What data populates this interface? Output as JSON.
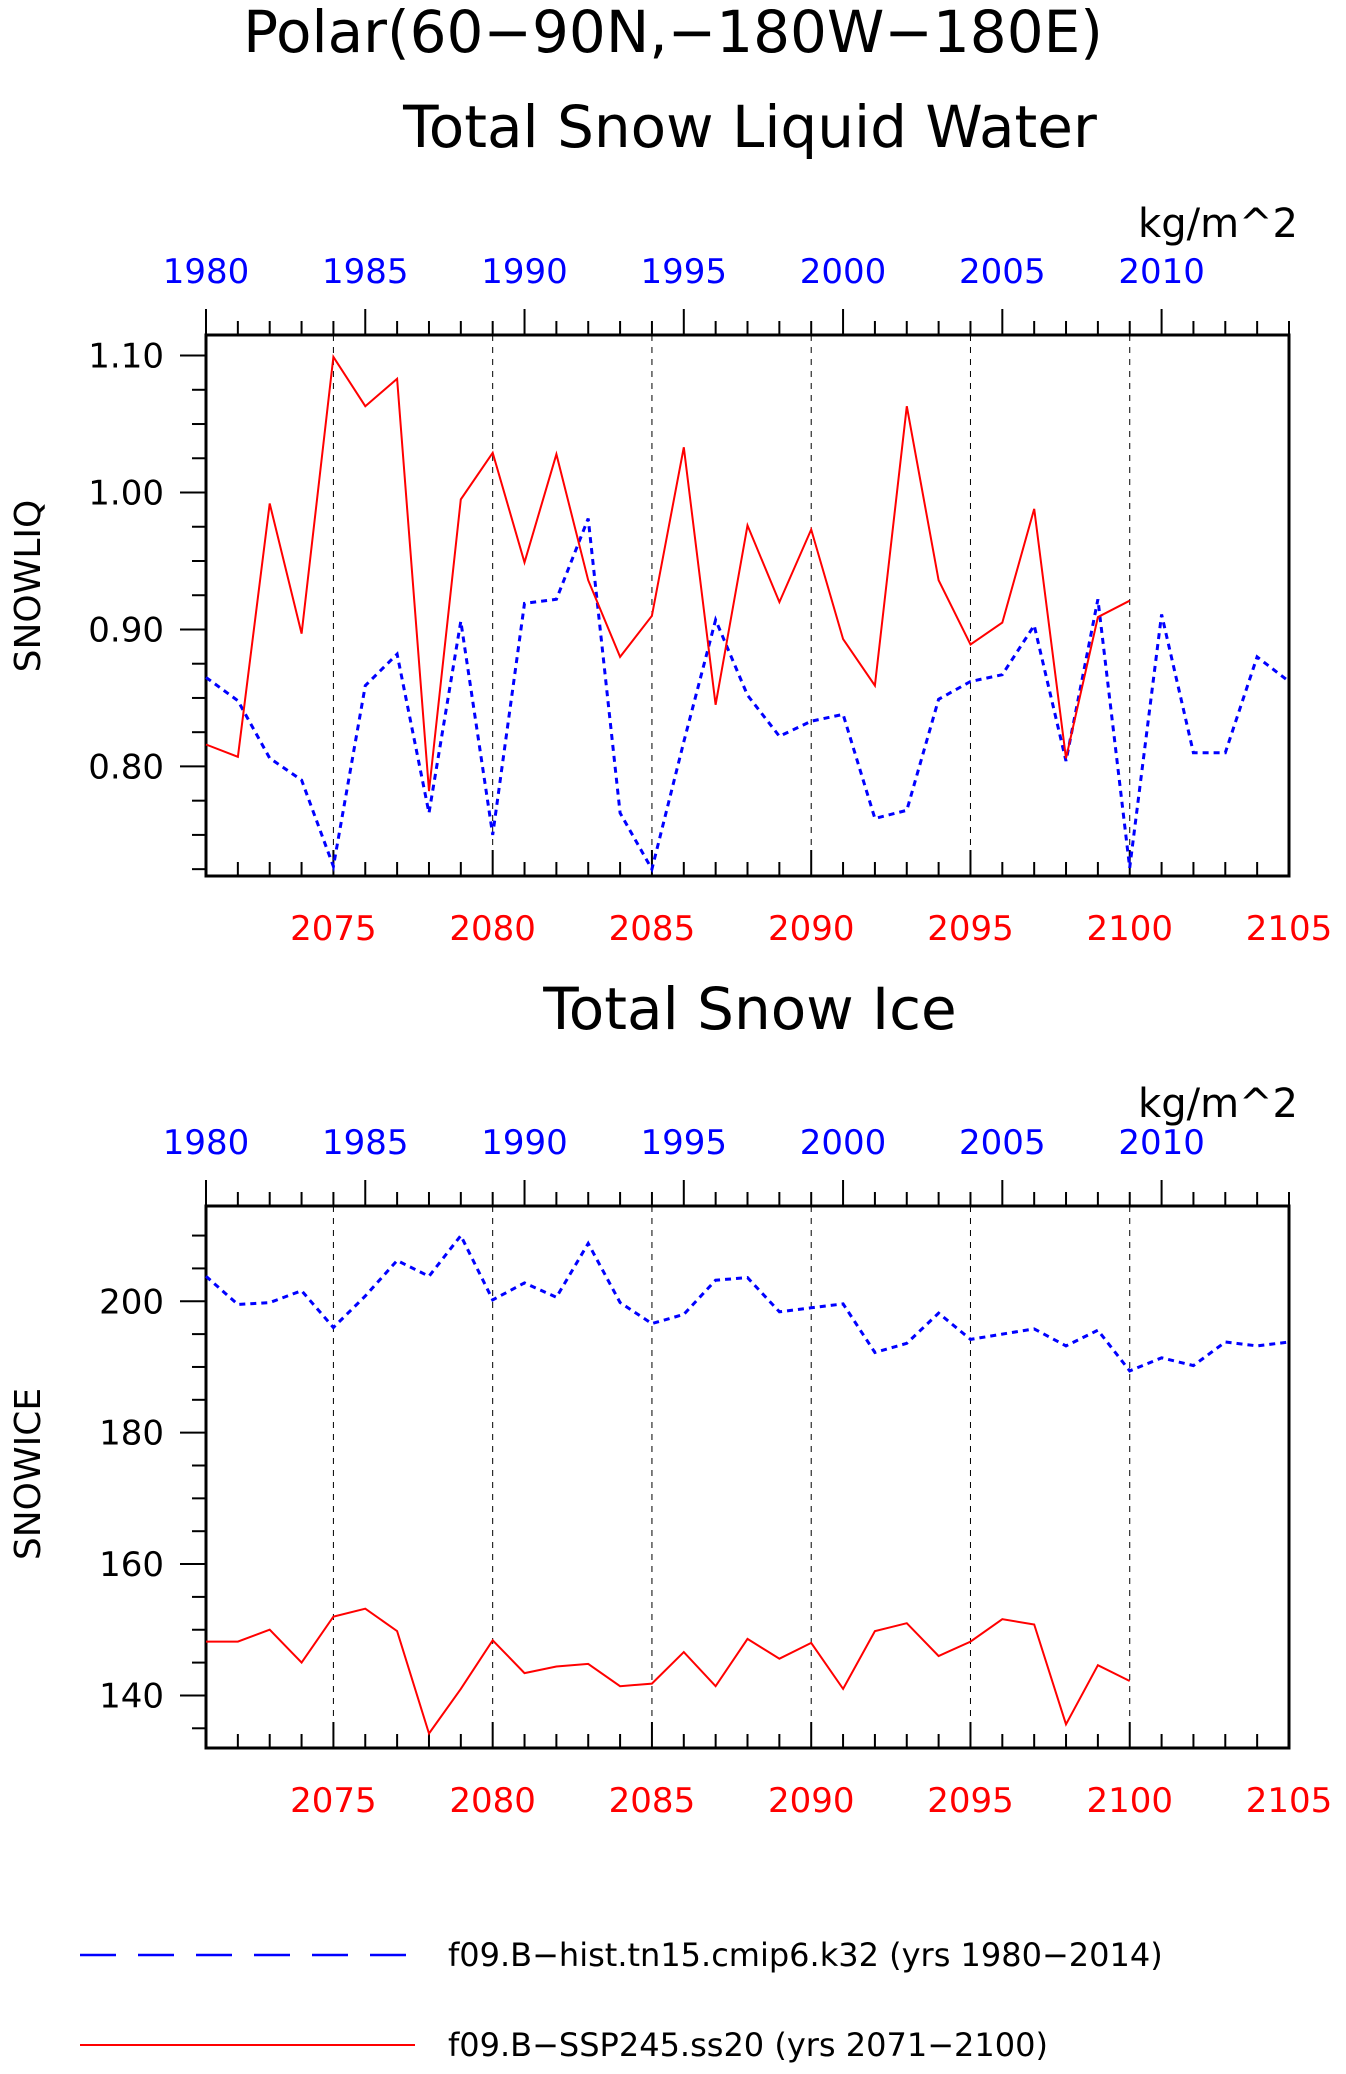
{
  "page": {
    "title": "Polar(60−90N,−180W−180E)",
    "legend": [
      {
        "label": "f09.B−hist.tn15.cmip6.k32 (yrs 1980−2014)",
        "color": "#0000ff",
        "dash": "dashed"
      },
      {
        "label": "f09.B−SSP245.ss20 (yrs 2071−2100)",
        "color": "#ff0000",
        "dash": "solid"
      }
    ]
  },
  "colors": {
    "hist": "#0000ff",
    "ssp": "#ff0000",
    "axes": "#000000"
  },
  "chart_data": [
    {
      "type": "line",
      "title": "Total Snow Liquid Water",
      "ylabel": "SNOWLIQ",
      "units": "kg/m^2",
      "ylim": [
        0.72,
        1.115
      ],
      "yticks": [
        0.8,
        0.9,
        1.0,
        1.1
      ],
      "ytick_labels": [
        "0.80",
        "0.90",
        "1.00",
        "1.10"
      ],
      "bottom_axis": {
        "range": [
          2071,
          2105
        ],
        "ticks": [
          2075,
          2080,
          2085,
          2090,
          2095,
          2100,
          2105
        ],
        "tick_labels": [
          "2075",
          "2080",
          "2085",
          "2090",
          "2095",
          "2100",
          "2105"
        ]
      },
      "top_axis": {
        "range": [
          1980,
          2014
        ],
        "ticks": [
          1980,
          1985,
          1990,
          1995,
          2000,
          2005,
          2010
        ],
        "tick_labels": [
          "1980",
          "1985",
          "1990",
          "1995",
          "2000",
          "2005",
          "2010"
        ]
      },
      "grid": "vertical dashed at labeled years",
      "series": [
        {
          "name": "f09.B−hist.tn15.cmip6.k32 (yrs 1980−2014)",
          "axis": "top",
          "x": [
            1980,
            1981,
            1982,
            1983,
            1984,
            1985,
            1986,
            1987,
            1988,
            1989,
            1990,
            1991,
            1992,
            1993,
            1994,
            1995,
            1996,
            1997,
            1998,
            1999,
            2000,
            2001,
            2002,
            2003,
            2004,
            2005,
            2006,
            2007,
            2008,
            2009,
            2010,
            2011,
            2012,
            2013,
            2014
          ],
          "values": [
            0.865,
            0.848,
            0.806,
            0.79,
            0.727,
            0.859,
            0.882,
            0.766,
            0.906,
            0.75,
            0.919,
            0.922,
            0.981,
            0.766,
            0.725,
            0.818,
            0.907,
            0.852,
            0.822,
            0.833,
            0.838,
            0.762,
            0.768,
            0.849,
            0.862,
            0.867,
            0.903,
            0.804,
            0.922,
            0.726,
            0.911,
            0.81,
            0.81,
            0.88,
            0.862
          ]
        },
        {
          "name": "f09.B−SSP245.ss20 (yrs 2071−2100)",
          "axis": "bottom",
          "x": [
            2071,
            2072,
            2073,
            2074,
            2075,
            2076,
            2077,
            2078,
            2079,
            2080,
            2081,
            2082,
            2083,
            2084,
            2085,
            2086,
            2087,
            2088,
            2089,
            2090,
            2091,
            2092,
            2093,
            2094,
            2095,
            2096,
            2097,
            2098,
            2099,
            2100
          ],
          "values": [
            0.816,
            0.807,
            0.992,
            0.897,
            1.099,
            1.063,
            1.083,
            0.782,
            0.995,
            1.029,
            0.949,
            1.028,
            0.936,
            0.88,
            0.91,
            1.033,
            0.845,
            0.976,
            0.92,
            0.973,
            0.893,
            0.859,
            1.063,
            0.936,
            0.889,
            0.905,
            0.988,
            0.806,
            0.909,
            0.921
          ]
        }
      ]
    },
    {
      "type": "line",
      "title": "Total Snow Ice",
      "ylabel": "SNOWICE",
      "units": "kg/m^2",
      "ylim": [
        132,
        214.5
      ],
      "yticks": [
        140,
        160,
        180,
        200
      ],
      "ytick_labels": [
        "140",
        "160",
        "180",
        "200"
      ],
      "bottom_axis": {
        "range": [
          2071,
          2105
        ],
        "ticks": [
          2075,
          2080,
          2085,
          2090,
          2095,
          2100,
          2105
        ],
        "tick_labels": [
          "2075",
          "2080",
          "2085",
          "2090",
          "2095",
          "2100",
          "2105"
        ]
      },
      "top_axis": {
        "range": [
          1980,
          2014
        ],
        "ticks": [
          1980,
          1985,
          1990,
          1995,
          2000,
          2005,
          2010
        ],
        "tick_labels": [
          "1980",
          "1985",
          "1990",
          "1995",
          "2000",
          "2005",
          "2010"
        ]
      },
      "grid": "vertical dashed at labeled years",
      "series": [
        {
          "name": "f09.B−hist.tn15.cmip6.k32 (yrs 1980−2014)",
          "axis": "top",
          "x": [
            1980,
            1981,
            1982,
            1983,
            1984,
            1985,
            1986,
            1987,
            1988,
            1989,
            1990,
            1991,
            1992,
            1993,
            1994,
            1995,
            1996,
            1997,
            1998,
            1999,
            2000,
            2001,
            2002,
            2003,
            2004,
            2005,
            2006,
            2007,
            2008,
            2009,
            2010,
            2011,
            2012,
            2013,
            2014
          ],
          "values": [
            203.8,
            199.5,
            199.8,
            201.6,
            196.0,
            200.8,
            206.2,
            203.8,
            210.0,
            200.2,
            202.8,
            200.6,
            208.8,
            199.8,
            196.6,
            198.0,
            203.2,
            203.6,
            198.4,
            199.0,
            199.6,
            192.2,
            193.6,
            198.2,
            194.2,
            195.0,
            195.8,
            193.2,
            195.6,
            189.4,
            191.4,
            190.2,
            193.8,
            193.2,
            193.8
          ]
        },
        {
          "name": "f09.B−SSP245.ss20 (yrs 2071−2100)",
          "axis": "bottom",
          "x": [
            2071,
            2072,
            2073,
            2074,
            2075,
            2076,
            2077,
            2078,
            2079,
            2080,
            2081,
            2082,
            2083,
            2084,
            2085,
            2086,
            2087,
            2088,
            2089,
            2090,
            2091,
            2092,
            2093,
            2094,
            2095,
            2096,
            2097,
            2098,
            2099,
            2100
          ],
          "values": [
            148.2,
            148.2,
            150.0,
            145.0,
            152.0,
            153.2,
            149.8,
            134.2,
            141.0,
            148.4,
            143.4,
            144.4,
            144.8,
            141.4,
            141.8,
            146.6,
            141.4,
            148.6,
            145.6,
            148.0,
            141.0,
            149.8,
            151.0,
            146.0,
            148.2,
            151.6,
            150.8,
            135.6,
            144.6,
            142.2
          ]
        }
      ]
    }
  ]
}
